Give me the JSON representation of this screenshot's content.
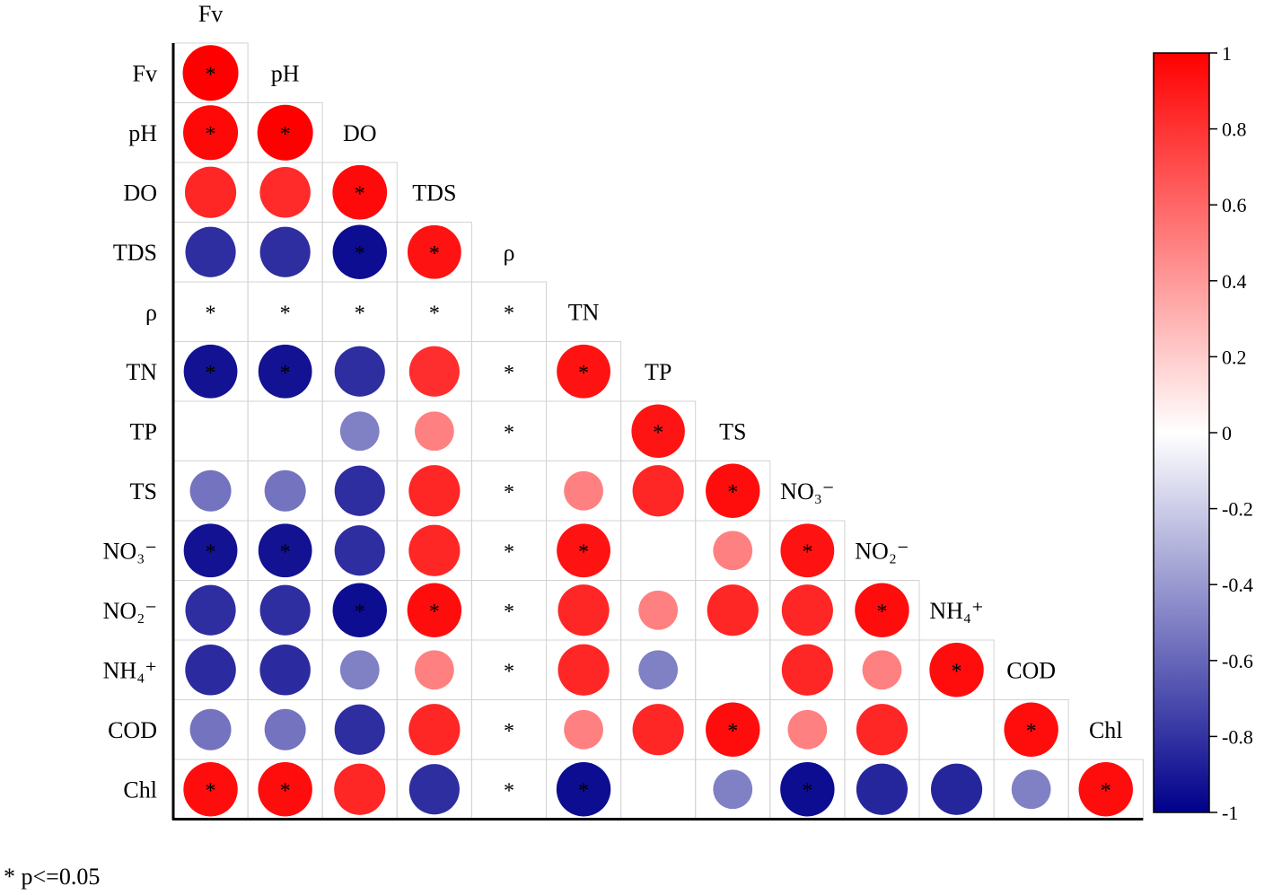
{
  "chart_data": {
    "type": "heatmap",
    "variables": [
      "Fv",
      "pH",
      "DO",
      "TDS",
      "ρ",
      "TN",
      "TP",
      "TS",
      "NO₃⁻",
      "NO₂⁻",
      "NH₄⁺",
      "COD",
      "Chl"
    ],
    "matrix": [
      [
        1.0
      ],
      [
        0.97,
        1.0
      ],
      [
        0.85,
        0.83,
        0.96
      ],
      [
        -0.82,
        -0.82,
        -0.95,
        0.93
      ],
      [
        null,
        null,
        null,
        null,
        null
      ],
      [
        -0.93,
        -0.93,
        -0.82,
        0.82,
        null,
        0.93
      ],
      [
        0.0,
        0.0,
        -0.5,
        0.5,
        null,
        0.0,
        0.92
      ],
      [
        -0.55,
        -0.55,
        -0.82,
        0.85,
        null,
        0.5,
        0.85,
        0.95
      ],
      [
        -0.93,
        -0.93,
        -0.82,
        0.85,
        null,
        0.93,
        0.0,
        0.5,
        0.93
      ],
      [
        -0.82,
        -0.82,
        -0.95,
        0.95,
        null,
        0.85,
        0.5,
        0.85,
        0.85,
        0.95
      ],
      [
        -0.83,
        -0.83,
        -0.5,
        0.5,
        null,
        0.85,
        -0.5,
        0.0,
        0.85,
        0.5,
        0.95
      ],
      [
        -0.55,
        -0.55,
        -0.82,
        0.85,
        null,
        0.5,
        0.85,
        0.95,
        0.5,
        0.85,
        0.0,
        0.95
      ],
      [
        0.95,
        0.95,
        0.85,
        -0.82,
        null,
        -0.95,
        0.0,
        -0.5,
        -0.95,
        -0.85,
        -0.85,
        -0.5,
        0.95
      ]
    ],
    "significant": [
      [
        true
      ],
      [
        true,
        true
      ],
      [
        false,
        false,
        true
      ],
      [
        false,
        false,
        true,
        true
      ],
      [
        true,
        true,
        true,
        true,
        true
      ],
      [
        true,
        true,
        false,
        false,
        true,
        true
      ],
      [
        false,
        false,
        false,
        false,
        true,
        false,
        true
      ],
      [
        false,
        false,
        false,
        false,
        true,
        false,
        false,
        true
      ],
      [
        true,
        true,
        false,
        false,
        true,
        true,
        false,
        false,
        true
      ],
      [
        false,
        false,
        true,
        true,
        true,
        false,
        false,
        false,
        false,
        true
      ],
      [
        false,
        false,
        false,
        false,
        true,
        false,
        false,
        false,
        false,
        false,
        true
      ],
      [
        false,
        false,
        false,
        false,
        true,
        false,
        false,
        true,
        false,
        false,
        false,
        true
      ],
      [
        true,
        true,
        false,
        false,
        true,
        true,
        false,
        false,
        true,
        false,
        false,
        false,
        true
      ]
    ],
    "colorbar": {
      "min": -1,
      "max": 1,
      "ticks": [
        1,
        0.8,
        0.6,
        0.4,
        0.2,
        0,
        -0.2,
        -0.4,
        -0.6,
        -0.8,
        -1
      ],
      "colors": {
        "positive": "#ff0000",
        "zero": "#ffffff",
        "negative": "#00008b"
      }
    },
    "significance_marker": "*",
    "footnote": "* p<=0.05"
  }
}
